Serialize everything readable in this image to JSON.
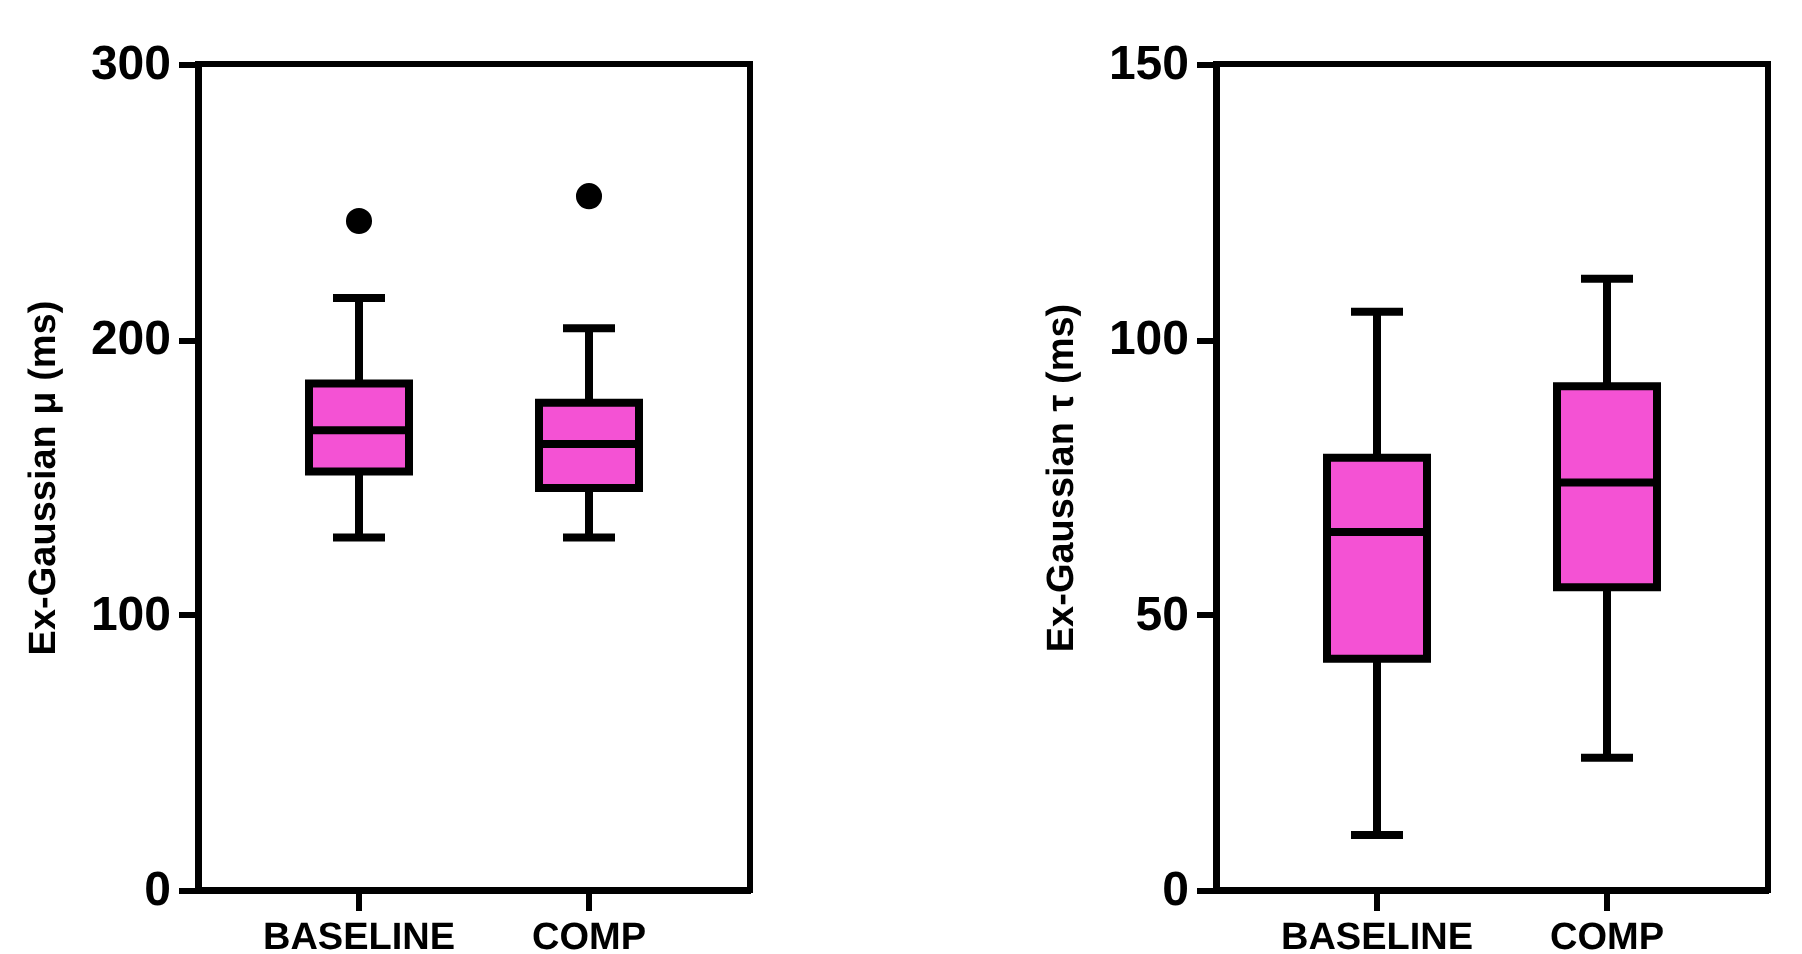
{
  "chart_data": [
    {
      "type": "box",
      "ylabel": "Ex-Gaussian μ (ms)",
      "categories": [
        "BASELINE",
        "COMP"
      ],
      "ylim": [
        0,
        300
      ],
      "yticks": [
        0,
        100,
        200,
        300
      ],
      "grid": false,
      "series": [
        {
          "color": "#f452d4",
          "boxes": [
            {
              "low": 128,
              "q1": 152,
              "median": 167,
              "q3": 184,
              "high": 215,
              "outliers": [
                243
              ]
            },
            {
              "low": 128,
              "q1": 146,
              "median": 162,
              "q3": 177,
              "high": 204,
              "outliers": [
                252
              ]
            }
          ]
        }
      ]
    },
    {
      "type": "box",
      "ylabel": "Ex-Gaussian τ (ms)",
      "categories": [
        "BASELINE",
        "COMP"
      ],
      "ylim": [
        0,
        150
      ],
      "yticks": [
        0,
        50,
        100,
        150
      ],
      "grid": false,
      "series": [
        {
          "color": "#f452d4",
          "boxes": [
            {
              "low": 10,
              "q1": 42,
              "median": 65,
              "q3": 78.5,
              "high": 105
            },
            {
              "low": 24,
              "q1": 55,
              "median": 74,
              "q3": 91.5,
              "high": 111
            }
          ]
        }
      ]
    }
  ]
}
